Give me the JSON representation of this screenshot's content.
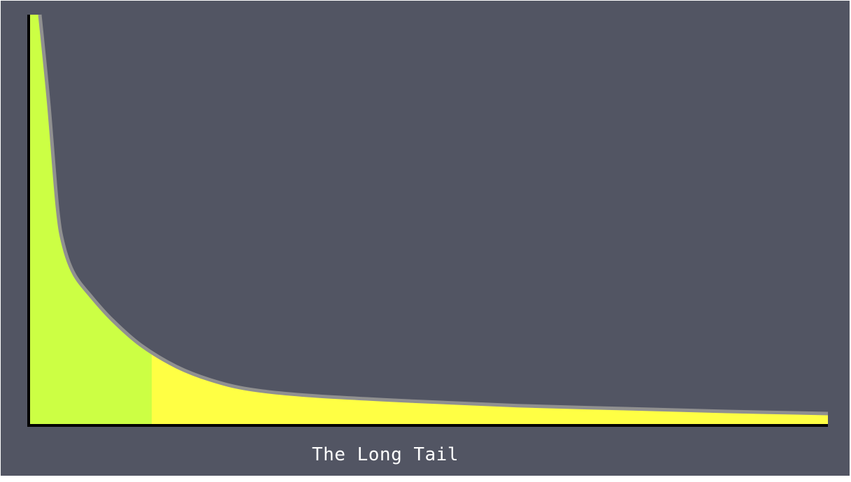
{
  "chart_data": {
    "type": "area",
    "title": "The Long Tail",
    "xlabel": "",
    "ylabel": "",
    "xlim": [
      0,
      100
    ],
    "ylim": [
      0,
      100
    ],
    "grid": false,
    "head_cutoff_x": 15.4,
    "points": [
      {
        "x": 1.4,
        "y": 100
      },
      {
        "x": 2.5,
        "y": 78.6
      },
      {
        "x": 3.6,
        "y": 53
      },
      {
        "x": 4.4,
        "y": 43.6
      },
      {
        "x": 5.7,
        "y": 36.8
      },
      {
        "x": 7.9,
        "y": 31.2
      },
      {
        "x": 10.5,
        "y": 25.6
      },
      {
        "x": 14.0,
        "y": 19.6
      },
      {
        "x": 18.4,
        "y": 14.4
      },
      {
        "x": 22.7,
        "y": 11.1
      },
      {
        "x": 27.6,
        "y": 8.8
      },
      {
        "x": 35.0,
        "y": 7.3
      },
      {
        "x": 48.1,
        "y": 5.9
      },
      {
        "x": 61.2,
        "y": 4.8
      },
      {
        "x": 74.3,
        "y": 4.1
      },
      {
        "x": 87.4,
        "y": 3.4
      },
      {
        "x": 100,
        "y": 2.9
      }
    ],
    "colors": {
      "background": "#525563",
      "head_fill": "#ccff44",
      "tail_fill": "#ffff44",
      "curve": "#909090",
      "axis": "#000000"
    }
  }
}
